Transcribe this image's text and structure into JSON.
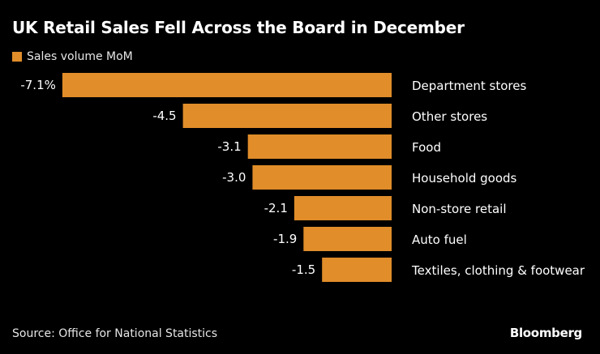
{
  "chart_data": {
    "type": "bar",
    "orientation": "horizontal",
    "title": "UK Retail Sales Fell Across the Board in December",
    "legend": "Sales volume MoM",
    "categories": [
      "Department stores",
      "Other stores",
      "Food",
      "Household goods",
      "Non-store retail",
      "Auto fuel",
      "Textiles, clothing & footwear"
    ],
    "values": [
      -7.1,
      -4.5,
      -3.1,
      -3.0,
      -2.1,
      -1.9,
      -1.5
    ],
    "data_labels": [
      "-7.1%",
      "-4.5",
      "-3.1",
      "-3.0",
      "-2.1",
      "-1.9",
      "-1.5"
    ],
    "unit": "%",
    "xlim": [
      -7.1,
      0
    ],
    "grid": false,
    "colors": {
      "bar": "#E08D2A",
      "background": "#000000",
      "text": "#FFFFFF"
    }
  },
  "footer": {
    "source": "Source: Office for National Statistics",
    "logo": "Bloomberg"
  }
}
